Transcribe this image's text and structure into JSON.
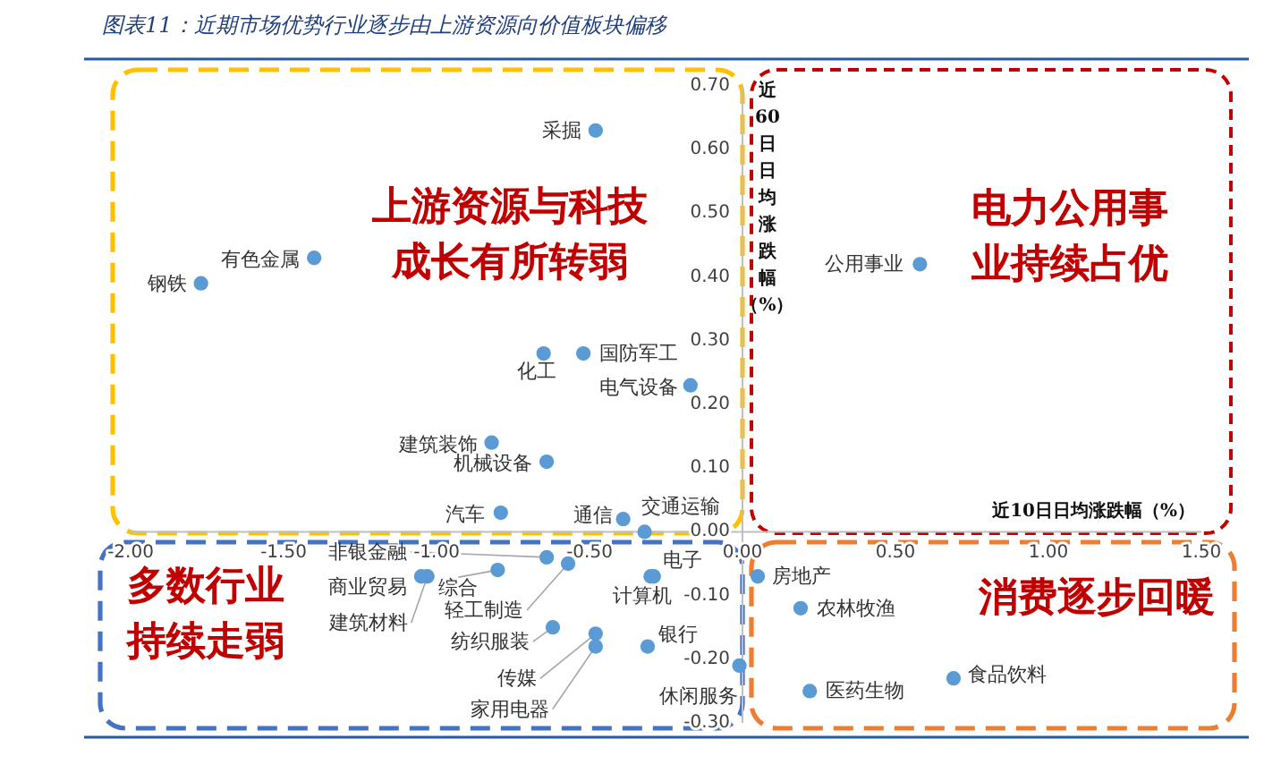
{
  "chart_data": {
    "type": "scatter",
    "title": "图表11：近期市场优势行业逐步由上游资源向价值板块偏移",
    "xlabel": "近10日日均涨跌幅（%）",
    "ylabel": "近60日日均涨跌幅（%）",
    "x": [
      -0.48,
      -1.4,
      -1.77,
      -0.65,
      -0.52,
      -0.17,
      -0.82,
      -0.64,
      -0.79,
      -0.39,
      -0.32,
      0.58,
      -1.05,
      -0.8,
      -0.57,
      -1.03,
      -0.64,
      -0.62,
      -0.48,
      -0.48,
      -0.29,
      -0.3,
      -0.31,
      -0.01,
      0.05,
      0.19,
      0.22,
      0.69
    ],
    "values": [
      0.63,
      0.43,
      0.39,
      0.28,
      0.28,
      0.23,
      0.14,
      0.11,
      0.03,
      0.02,
      0.0,
      0.42,
      -0.07,
      -0.06,
      -0.05,
      -0.07,
      -0.04,
      -0.15,
      -0.16,
      -0.18,
      -0.07,
      -0.07,
      -0.18,
      -0.21,
      -0.07,
      -0.12,
      -0.25,
      -0.23
    ],
    "color": "#5b9bd5",
    "marker": "circle",
    "xlim": [
      -2,
      1.5
    ],
    "ylim": [
      -0.3,
      0.7
    ],
    "xticks": [
      {
        "value": -2,
        "label": "-2.00"
      },
      {
        "value": -1.5,
        "label": "-1.50"
      },
      {
        "value": -1,
        "label": "-1.00"
      },
      {
        "value": -0.5,
        "label": "-0.50"
      },
      {
        "value": 0,
        "label": "0.00"
      },
      {
        "value": 0.5,
        "label": "0.50"
      },
      {
        "value": 1,
        "label": "1.00"
      },
      {
        "value": 1.5,
        "label": "1.50"
      }
    ],
    "yticks": [
      {
        "value": -0.3,
        "label": "-0.30"
      },
      {
        "value": -0.2,
        "label": "-0.20"
      },
      {
        "value": -0.1,
        "label": "-0.10"
      },
      {
        "value": 0,
        "label": "0.00"
      },
      {
        "value": 0.1,
        "label": "0.10"
      },
      {
        "value": 0.2,
        "label": "0.20"
      },
      {
        "value": 0.3,
        "label": "0.30"
      },
      {
        "value": 0.4,
        "label": "0.40"
      },
      {
        "value": 0.5,
        "label": "0.50"
      },
      {
        "value": 0.6,
        "label": "0.60"
      },
      {
        "value": 0.7,
        "label": "0.70"
      }
    ],
    "annotations": [
      {
        "text": "采掘",
        "x": -0.48,
        "y": 0.63
      },
      {
        "text": "有色金属",
        "x": -1.4,
        "y": 0.43
      },
      {
        "text": "钢铁",
        "x": -1.77,
        "y": 0.39
      },
      {
        "text": "化工",
        "x": -0.65,
        "y": 0.28
      },
      {
        "text": "国防军工",
        "x": -0.52,
        "y": 0.28
      },
      {
        "text": "电气设备",
        "x": -0.17,
        "y": 0.23
      },
      {
        "text": "建筑装饰",
        "x": -0.82,
        "y": 0.14
      },
      {
        "text": "机械设备",
        "x": -0.64,
        "y": 0.11
      },
      {
        "text": "汽车",
        "x": -0.79,
        "y": 0.03
      },
      {
        "text": "通信",
        "x": -0.39,
        "y": 0.02
      },
      {
        "text": "交通运输",
        "x": -0.32,
        "y": 0.0
      },
      {
        "text": "公用事业",
        "x": 0.58,
        "y": 0.42
      },
      {
        "text": "商业贸易",
        "x": -1.05,
        "y": -0.07
      },
      {
        "text": "综合",
        "x": -0.8,
        "y": -0.06
      },
      {
        "text": "轻工制造",
        "x": -0.57,
        "y": -0.05
      },
      {
        "text": "建筑材料",
        "x": -1.03,
        "y": -0.07
      },
      {
        "text": "非银金融",
        "x": -0.64,
        "y": -0.04
      },
      {
        "text": "纺织服装",
        "x": -0.62,
        "y": -0.15
      },
      {
        "text": "传媒",
        "x": -0.48,
        "y": -0.16
      },
      {
        "text": "家用电器",
        "x": -0.48,
        "y": -0.18
      },
      {
        "text": "电子",
        "x": -0.29,
        "y": -0.07
      },
      {
        "text": "计算机",
        "x": -0.3,
        "y": -0.07
      },
      {
        "text": "银行",
        "x": -0.31,
        "y": -0.18
      },
      {
        "text": "休闲服务",
        "x": -0.01,
        "y": -0.21
      },
      {
        "text": "房地产",
        "x": 0.05,
        "y": -0.07
      },
      {
        "text": "农林牧渔",
        "x": 0.19,
        "y": -0.12
      },
      {
        "text": "医药生物",
        "x": 0.22,
        "y": -0.25
      },
      {
        "text": "食品饮料",
        "x": 0.69,
        "y": -0.23
      },
      "上游资源与科技成长有所转弱",
      "电力公用事业持续占优",
      "多数行业持续走弱",
      "消费逐步回暖"
    ]
  }
}
